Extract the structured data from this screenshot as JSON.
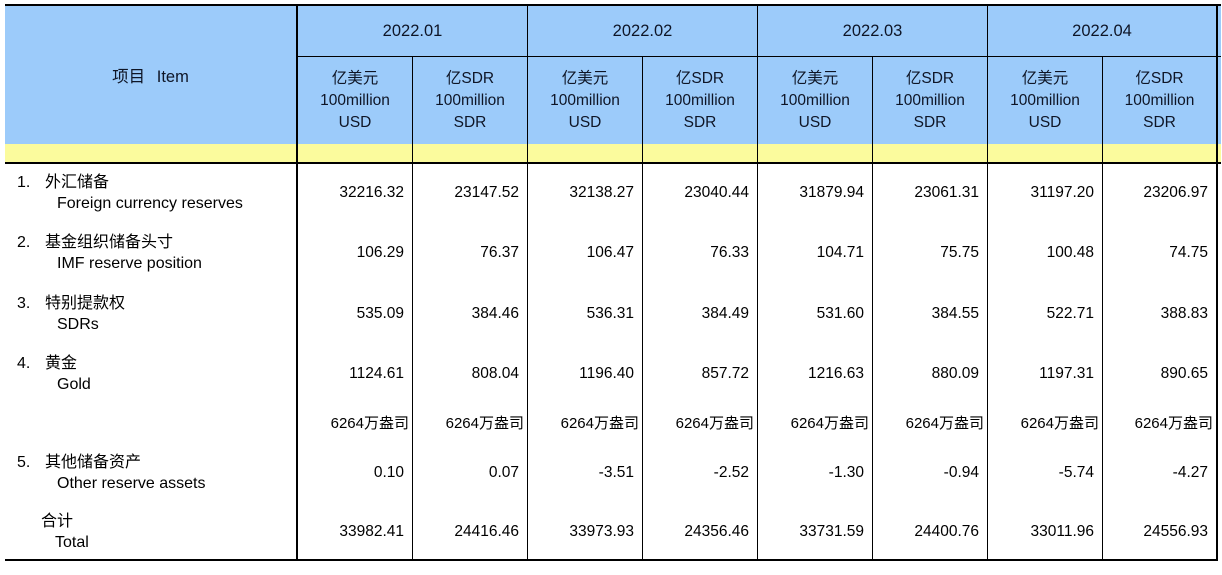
{
  "colors": {
    "header_blue": "#9CCBFA",
    "band_yellow": "#FBFB9D",
    "border_black": "#000000",
    "header_text": "#0E1526"
  },
  "header": {
    "item_label": "项目 Item",
    "months": [
      "2022.01",
      "2022.02",
      "2022.03",
      "2022.04"
    ],
    "usd": [
      "亿美元",
      "100million",
      "USD"
    ],
    "sdr": [
      "亿SDR",
      "100million",
      "SDR"
    ]
  },
  "body": {
    "rows": [
      {
        "no": "1.",
        "cn": "外汇储备",
        "en": "Foreign currency reserves",
        "v": [
          "32216.32",
          "23147.52",
          "32138.27",
          "23040.44",
          "31879.94",
          "23061.31",
          "31197.20",
          "23206.97"
        ]
      },
      {
        "no": "2.",
        "cn": "基金组织储备头寸",
        "en": "IMF reserve position",
        "v": [
          "106.29",
          "76.37",
          "106.47",
          "76.33",
          "104.71",
          "75.75",
          "100.48",
          "74.75"
        ]
      },
      {
        "no": "3.",
        "cn": "特别提款权",
        "en": "SDRs",
        "v": [
          "535.09",
          "384.46",
          "536.31",
          "384.49",
          "531.60",
          "384.55",
          "522.71",
          "388.83"
        ]
      },
      {
        "no": "4.",
        "cn": "黄金",
        "en": "Gold",
        "v": [
          "1124.61",
          "808.04",
          "1196.40",
          "857.72",
          "1216.63",
          "880.09",
          "1197.31",
          "890.65"
        ]
      },
      {
        "no": "5.",
        "cn": "其他储备资产",
        "en": "Other reserve assets",
        "v": [
          "0.10",
          "0.07",
          "-3.51",
          "-2.52",
          "-1.30",
          "-0.94",
          "-5.74",
          "-4.27"
        ]
      }
    ],
    "gold_ounces": [
      "6264万盎司",
      "6264万盎司",
      "6264万盎司",
      "6264万盎司",
      "6264万盎司",
      "6264万盎司",
      "6264万盎司",
      "6264万盎司"
    ],
    "total": {
      "cn": "合计",
      "en": "Total",
      "v": [
        "33982.41",
        "24416.46",
        "33973.93",
        "24356.46",
        "33731.59",
        "24400.76",
        "33011.96",
        "24556.93"
      ]
    }
  }
}
